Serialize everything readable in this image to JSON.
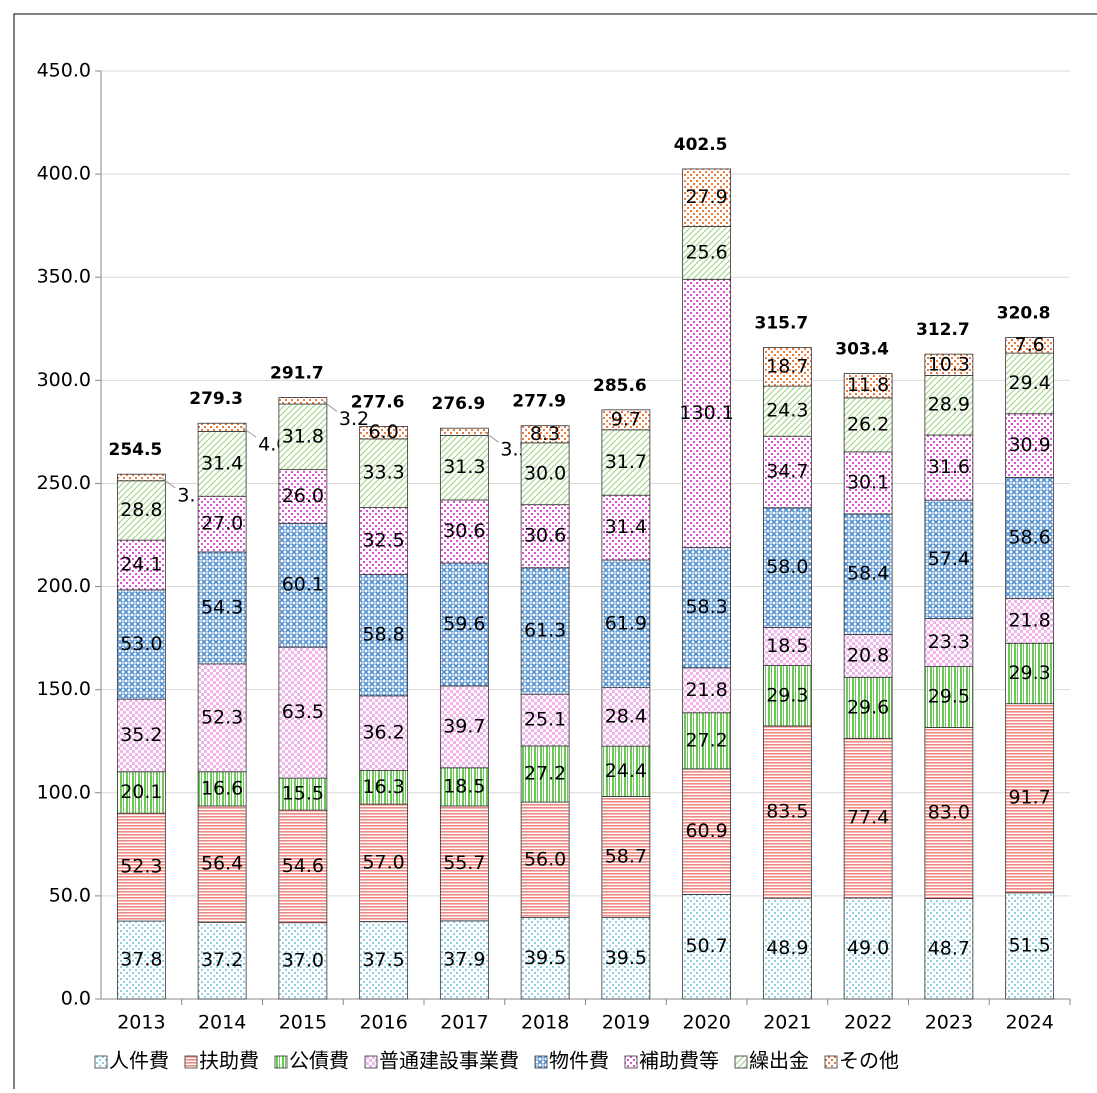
{
  "chart_data": {
    "type": "stacked_bar",
    "categories": [
      "2013",
      "2014",
      "2015",
      "2016",
      "2017",
      "2018",
      "2019",
      "2020",
      "2021",
      "2022",
      "2023",
      "2024"
    ],
    "series": [
      {
        "name": "人件費",
        "color": "#8fd0e3",
        "values": [
          37.8,
          37.2,
          37.0,
          37.5,
          37.9,
          39.5,
          39.5,
          50.7,
          48.9,
          49.0,
          48.7,
          51.5
        ],
        "value_labels": [
          "37.8",
          "37.2",
          "37.0",
          "37.5",
          "37.9",
          "39.5",
          "39.5",
          "50.7",
          "48.9",
          "49.0",
          "48.7",
          "51.5"
        ]
      },
      {
        "name": "扶助費",
        "color": "#ee8a84",
        "values": [
          52.3,
          56.4,
          54.6,
          57.0,
          55.7,
          56.0,
          58.7,
          60.9,
          83.5,
          77.4,
          83.0,
          91.7
        ],
        "value_labels": [
          "52.3",
          "56.4",
          "54.6",
          "57.0",
          "55.7",
          "56.0",
          "58.7",
          "60.9",
          "83.5",
          "77.4",
          "83.0",
          "91.7"
        ]
      },
      {
        "name": "公債費",
        "color": "#6cc957",
        "values": [
          20.1,
          16.6,
          15.5,
          16.3,
          18.5,
          27.2,
          24.4,
          27.2,
          29.3,
          29.6,
          29.5,
          29.3
        ],
        "value_labels": [
          "20.1",
          "16.6",
          "15.5",
          "16.3",
          "18.5",
          "27.2",
          "24.4",
          "27.2",
          "29.3",
          "29.6",
          "29.5",
          "29.3"
        ]
      },
      {
        "name": "普通建設事業費",
        "color": "#f0b5ea",
        "values": [
          35.2,
          52.3,
          63.5,
          36.2,
          39.7,
          25.1,
          28.4,
          21.8,
          18.5,
          20.8,
          23.3,
          21.8
        ],
        "value_labels": [
          "35.2",
          "52.3",
          "63.5",
          "36.2",
          "39.7",
          "25.1",
          "28.4",
          "21.8",
          "18.5",
          "20.8",
          "23.3",
          "21.8"
        ]
      },
      {
        "name": "物件費",
        "color": "#4f8fd0",
        "values": [
          53.0,
          54.3,
          60.1,
          58.8,
          59.6,
          61.3,
          61.9,
          58.3,
          58.0,
          58.4,
          57.4,
          58.6
        ],
        "value_labels": [
          "53.0",
          "54.3",
          "60.1",
          "58.8",
          "59.6",
          "61.3",
          "61.9",
          "58.3",
          "58.0",
          "58.4",
          "57.4",
          "58.6"
        ]
      },
      {
        "name": "補助費等",
        "color": "#df4fd3",
        "values": [
          24.1,
          27.0,
          26.0,
          32.5,
          30.6,
          30.6,
          31.4,
          130.1,
          34.7,
          30.1,
          31.6,
          30.9
        ],
        "value_labels": [
          "24.1",
          "27.0",
          "26.0",
          "32.5",
          "30.6",
          "30.6",
          "31.4",
          "130.1",
          "34.7",
          "30.1",
          "31.6",
          "30.9"
        ]
      },
      {
        "name": "繰出金",
        "color": "#a8d890",
        "values": [
          28.8,
          31.4,
          31.8,
          33.3,
          31.3,
          30.0,
          31.7,
          25.6,
          24.3,
          26.2,
          28.9,
          29.4
        ],
        "value_labels": [
          "28.8",
          "31.4",
          "31.8",
          "33.3",
          "31.3",
          "30.0",
          "31.7",
          "25.6",
          "24.3",
          "26.2",
          "28.9",
          "29.4"
        ]
      },
      {
        "name": "その他",
        "color": "#ee7a3a",
        "values": [
          3.2,
          4.0,
          3.2,
          6.0,
          3.5,
          8.3,
          9.7,
          27.9,
          18.7,
          11.8,
          10.3,
          7.6
        ],
        "value_labels": [
          "3.…",
          "4.0",
          "3.2",
          "6.0",
          "3.5",
          "8.3",
          "9.7",
          "27.9",
          "18.7",
          "11.8",
          "10.3",
          "7.6"
        ]
      }
    ],
    "totals": [
      254.5,
      279.3,
      291.7,
      277.6,
      276.9,
      277.9,
      285.6,
      402.5,
      315.7,
      303.4,
      312.7,
      320.8
    ],
    "ylim": [
      0,
      450
    ],
    "yticks": [
      {
        "value": 0,
        "label": "0.0"
      },
      {
        "value": 50,
        "label": "50.0"
      },
      {
        "value": 100,
        "label": "100.0"
      },
      {
        "value": 150,
        "label": "150.0"
      },
      {
        "value": 200,
        "label": "200.0"
      },
      {
        "value": 250,
        "label": "250.0"
      },
      {
        "value": 300,
        "label": "300.0"
      },
      {
        "value": 350,
        "label": "350.0"
      },
      {
        "value": 400,
        "label": "400.0"
      },
      {
        "value": 450,
        "label": "450.0"
      }
    ],
    "grid": true
  }
}
